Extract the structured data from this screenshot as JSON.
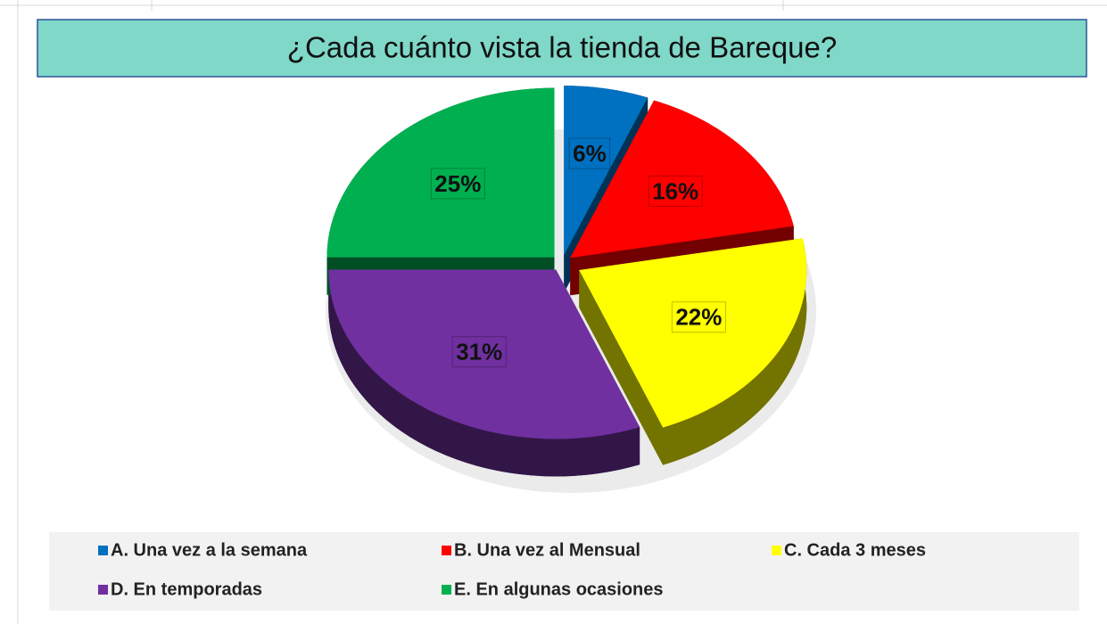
{
  "chart_data": {
    "type": "pie",
    "title": "¿Cada cuánto vista la tienda de Bareque?",
    "categories": [
      "A. Una vez a la semana",
      "B. Una vez al Mensual",
      "C. Cada 3 meses",
      "D. En temporadas",
      "E. En algunas ocasiones"
    ],
    "values": [
      6,
      16,
      22,
      31,
      25
    ],
    "value_labels": [
      "6%",
      "16%",
      "22%",
      "31%",
      "25%"
    ],
    "colors": [
      "#0070c0",
      "#ff0000",
      "#ffff00",
      "#7030a0",
      "#00b050"
    ],
    "legend": "bottom"
  }
}
